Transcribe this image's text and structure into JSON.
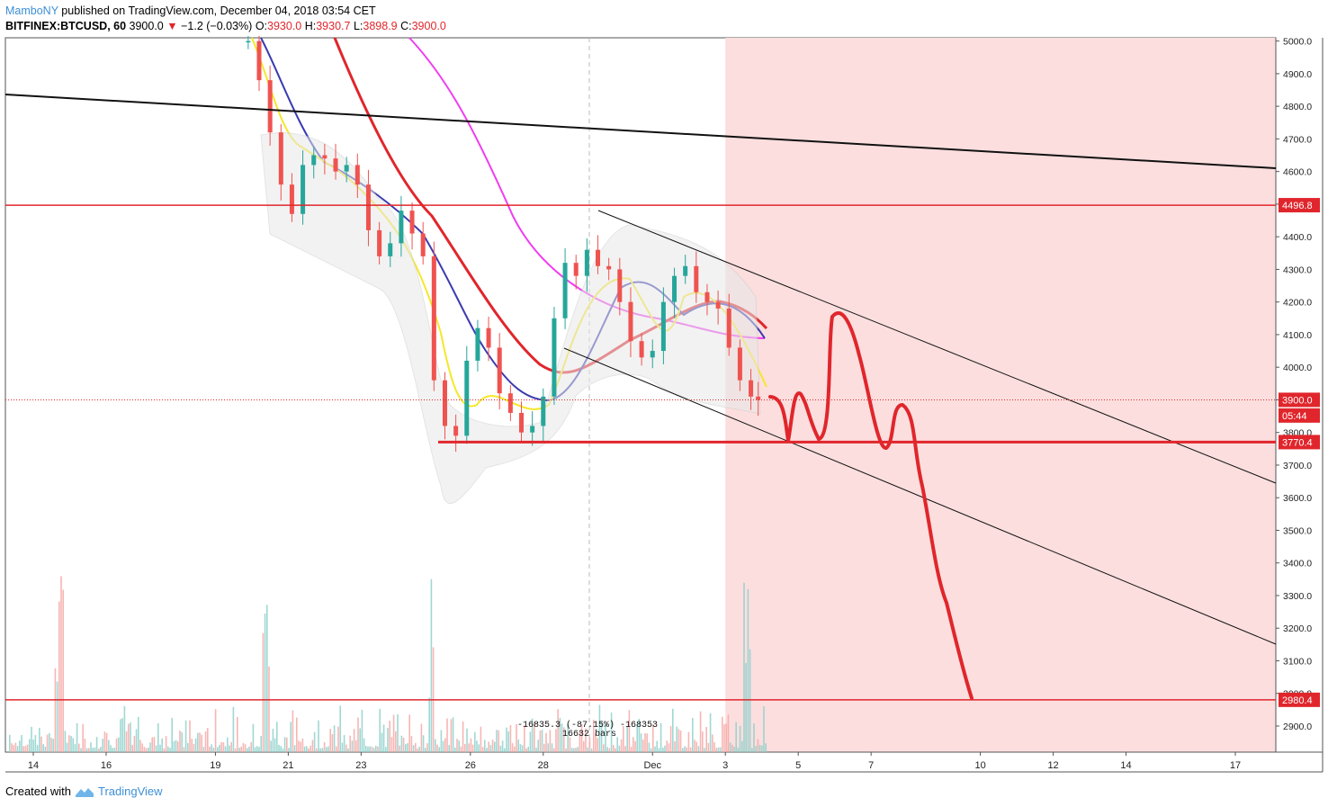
{
  "header": {
    "user": "MamboNY",
    "published": " published on TradingView.com, December 04, 2018 03:54 CET",
    "symbol": "BITFINEX:BTCUSD, 60",
    "last": "3900.0",
    "arrow": "▼",
    "change": "−1.2 (−0.03%)",
    "o_label": "O:",
    "o_val": "3930.0",
    "h_label": "H:",
    "h_val": "3930.7",
    "l_label": "L:",
    "l_val": "3898.9",
    "c_label": "C:",
    "c_val": "3900.0"
  },
  "footer": {
    "created": "Created with",
    "brand": "TradingView"
  },
  "colors": {
    "up": "#26a69a",
    "down": "#ef5350",
    "red_line": "#e0262c",
    "forecast_zone": "#fcdede",
    "ema_red": "#e0262c",
    "ma_blue": "#3a3bb0",
    "ma_yellow": "#f5e72b",
    "ma_magenta": "#f03df0",
    "trend_black": "#111111"
  },
  "chart_data": {
    "type": "candlestick",
    "symbol": "BITFINEX:BTCUSD",
    "timeframe": "60",
    "ylim": [
      2820,
      5010
    ],
    "y_ticks": [
      5000.0,
      4900.0,
      4800.0,
      4700.0,
      4600.0,
      4500.0,
      4400.0,
      4300.0,
      4200.0,
      4100.0,
      4000.0,
      3900.0,
      3800.0,
      3700.0,
      3600.0,
      3500.0,
      3400.0,
      3300.0,
      3200.0,
      3100.0,
      3000.0,
      2900.0
    ],
    "x_ticks": [
      {
        "label": "14",
        "day": 14
      },
      {
        "label": "16",
        "day": 16
      },
      {
        "label": "19",
        "day": 19
      },
      {
        "label": "21",
        "day": 21
      },
      {
        "label": "23",
        "day": 23
      },
      {
        "label": "26",
        "day": 26
      },
      {
        "label": "28",
        "day": 28
      },
      {
        "label": "Dec",
        "day": 31
      },
      {
        "label": "3",
        "day": 33
      },
      {
        "label": "5",
        "day": 35
      },
      {
        "label": "7",
        "day": 37
      },
      {
        "label": "10",
        "day": 40
      },
      {
        "label": "12",
        "day": 42
      },
      {
        "label": "14",
        "day": 44
      },
      {
        "label": "17",
        "day": 47
      }
    ],
    "price_labels": [
      {
        "text": "4496.8",
        "value": 4496.8,
        "color": "#e0262c"
      },
      {
        "text": "3900.0",
        "value": 3900.0,
        "color": "#e0262c"
      },
      {
        "text": "05:44",
        "value": 3852,
        "color": "#e0262c"
      },
      {
        "text": "3770.4",
        "value": 3770.4,
        "color": "#e0262c"
      },
      {
        "text": "2980.4",
        "value": 2980.4,
        "color": "#e0262c"
      }
    ],
    "horizontal_levels": [
      4496.8,
      3770.4,
      2980.4
    ],
    "last_price": 3900.0,
    "forecast_zone_start_day": 33,
    "candles_close_path": [
      [
        19.9,
        5000
      ],
      [
        20.2,
        4880
      ],
      [
        20.5,
        4720
      ],
      [
        20.8,
        4560
      ],
      [
        21.1,
        4470
      ],
      [
        21.4,
        4620
      ],
      [
        21.7,
        4650
      ],
      [
        22.0,
        4640
      ],
      [
        22.3,
        4600
      ],
      [
        22.6,
        4620
      ],
      [
        22.9,
        4560
      ],
      [
        23.2,
        4420
      ],
      [
        23.5,
        4340
      ],
      [
        23.8,
        4380
      ],
      [
        24.1,
        4480
      ],
      [
        24.4,
        4410
      ],
      [
        24.7,
        4340
      ],
      [
        25.0,
        3960
      ],
      [
        25.3,
        3820
      ],
      [
        25.6,
        3790
      ],
      [
        25.9,
        4020
      ],
      [
        26.2,
        4120
      ],
      [
        26.5,
        4060
      ],
      [
        26.8,
        3920
      ],
      [
        27.1,
        3860
      ],
      [
        27.4,
        3800
      ],
      [
        27.7,
        3820
      ],
      [
        28.0,
        3910
      ],
      [
        28.3,
        4150
      ],
      [
        28.6,
        4320
      ],
      [
        28.9,
        4280
      ],
      [
        29.2,
        4360
      ],
      [
        29.5,
        4310
      ],
      [
        29.8,
        4300
      ],
      [
        30.1,
        4200
      ],
      [
        30.4,
        4080
      ],
      [
        30.7,
        4030
      ],
      [
        31.0,
        4050
      ],
      [
        31.3,
        4200
      ],
      [
        31.6,
        4280
      ],
      [
        31.9,
        4310
      ],
      [
        32.2,
        4230
      ],
      [
        32.5,
        4200
      ],
      [
        32.8,
        4180
      ],
      [
        33.1,
        4060
      ],
      [
        33.4,
        3960
      ],
      [
        33.7,
        3910
      ],
      [
        33.9,
        3900
      ]
    ],
    "volume_note": "-16835.3 (-87.15%) -168353",
    "bars_note": "16632 bars"
  }
}
